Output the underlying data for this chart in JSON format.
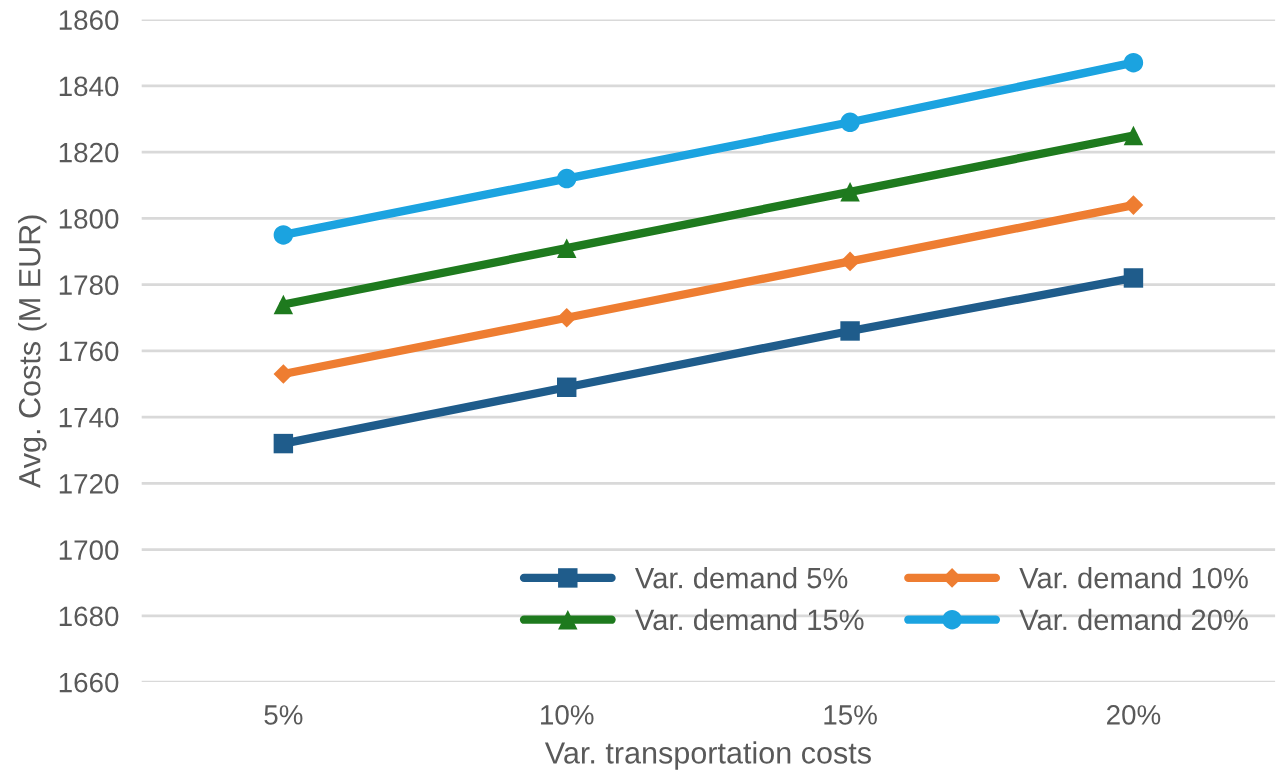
{
  "chart_data": {
    "type": "line",
    "xlabel": "Var. transportation costs",
    "ylabel": "Avg. Costs (M EUR)",
    "categories": [
      "5%",
      "10%",
      "15%",
      "20%"
    ],
    "series": [
      {
        "name": "Var. demand 5%",
        "color": "#1f5c8b",
        "marker": "square",
        "values": [
          1732,
          1749,
          1766,
          1782
        ]
      },
      {
        "name": "Var. demand 10%",
        "color": "#ee7d31",
        "marker": "diamond",
        "values": [
          1753,
          1770,
          1787,
          1804
        ]
      },
      {
        "name": "Var. demand 15%",
        "color": "#1e7a1e",
        "marker": "triangle",
        "values": [
          1774,
          1791,
          1808,
          1825
        ]
      },
      {
        "name": "Var. demand 20%",
        "color": "#1ba3e0",
        "marker": "circle",
        "values": [
          1795,
          1812,
          1829,
          1847
        ]
      }
    ],
    "ylim": [
      1660,
      1860
    ],
    "yticks": [
      1660,
      1680,
      1700,
      1720,
      1740,
      1760,
      1780,
      1800,
      1820,
      1840,
      1860
    ],
    "grid": "y",
    "legend": "bottom right"
  }
}
